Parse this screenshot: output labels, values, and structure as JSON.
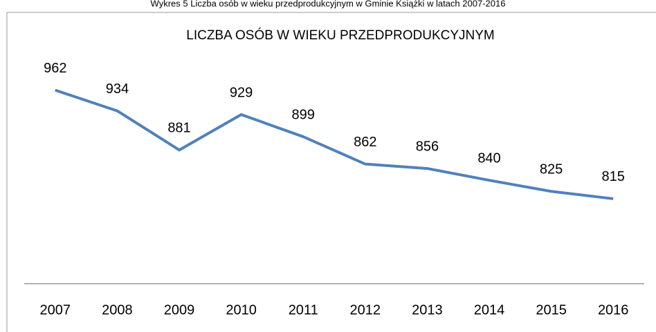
{
  "caption": "Wykres 5 Liczba osób w wieku przedprodukcyjnym w Gminie Książki w latach 2007-2016",
  "chart_data": {
    "type": "line",
    "title": "LICZBA OSÓB W WIEKU PRZEDPRODUKCYJNYM",
    "categories": [
      "2007",
      "2008",
      "2009",
      "2010",
      "2011",
      "2012",
      "2013",
      "2014",
      "2015",
      "2016"
    ],
    "series": [
      {
        "color": "#4f81bd",
        "values": [
          962,
          934,
          881,
          929,
          899,
          862,
          856,
          840,
          825,
          815
        ]
      }
    ],
    "ylim": [
      700,
      1000
    ]
  }
}
